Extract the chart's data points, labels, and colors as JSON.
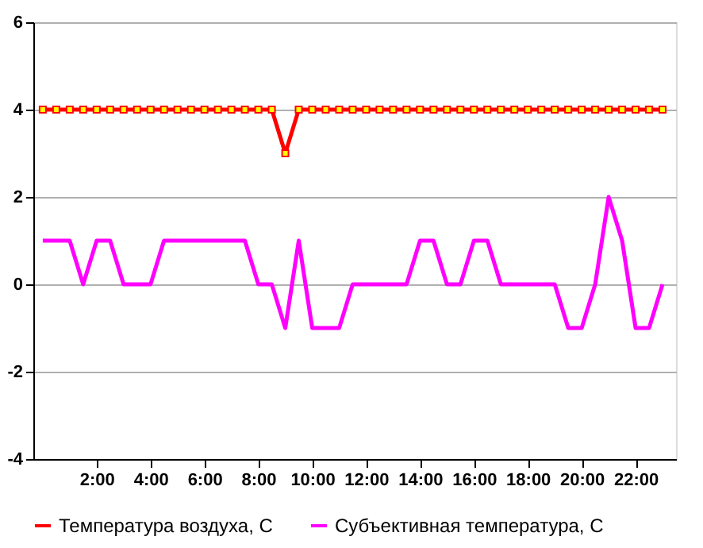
{
  "chart_data": {
    "type": "line",
    "x": [
      0,
      0.5,
      1,
      1.5,
      2,
      2.5,
      3,
      3.5,
      4,
      4.5,
      5,
      5.5,
      6,
      6.5,
      7,
      7.5,
      8,
      8.5,
      9,
      9.5,
      10,
      10.5,
      11,
      11.5,
      12,
      12.5,
      13,
      13.5,
      14,
      14.5,
      15,
      15.5,
      16,
      16.5,
      17,
      17.5,
      18,
      18.5,
      19,
      19.5,
      20,
      20.5,
      21,
      21.5,
      22,
      22.5,
      23
    ],
    "series": [
      {
        "name": "Температура воздуха, С",
        "color": "#ff0000",
        "marker": "square",
        "values": [
          4,
          4,
          4,
          4,
          4,
          4,
          4,
          4,
          4,
          4,
          4,
          4,
          4,
          4,
          4,
          4,
          4,
          4,
          3,
          4,
          4,
          4,
          4,
          4,
          4,
          4,
          4,
          4,
          4,
          4,
          4,
          4,
          4,
          4,
          4,
          4,
          4,
          4,
          4,
          4,
          4,
          4,
          4,
          4,
          4,
          4,
          4
        ]
      },
      {
        "name": "Субъективная температура, С",
        "color": "#ff00ff",
        "marker": "none",
        "values": [
          1,
          1,
          1,
          0,
          1,
          1,
          0,
          0,
          0,
          1,
          1,
          1,
          1,
          1,
          1,
          1,
          0,
          0,
          -1,
          1,
          -1,
          -1,
          -1,
          0,
          0,
          0,
          0,
          0,
          1,
          1,
          0,
          0,
          1,
          1,
          0,
          0,
          0,
          0,
          0,
          -1,
          -1,
          0,
          2,
          1,
          -1,
          -1,
          0
        ]
      }
    ],
    "xlim": [
      -0.35,
      23.5
    ],
    "xticks": [
      {
        "value": 2,
        "label": "2:00"
      },
      {
        "value": 4,
        "label": "4:00"
      },
      {
        "value": 6,
        "label": "6:00"
      },
      {
        "value": 8,
        "label": "8:00"
      },
      {
        "value": 10,
        "label": "10:00"
      },
      {
        "value": 12,
        "label": "12:00"
      },
      {
        "value": 14,
        "label": "14:00"
      },
      {
        "value": 16,
        "label": "16:00"
      },
      {
        "value": 18,
        "label": "18:00"
      },
      {
        "value": 20,
        "label": "20:00"
      },
      {
        "value": 22,
        "label": "22:00"
      }
    ],
    "ylim": [
      -4,
      6
    ],
    "yticks": [
      -4,
      -2,
      0,
      2,
      4,
      6
    ],
    "grid": "y",
    "legend": "bottom",
    "line_style": "solid"
  }
}
